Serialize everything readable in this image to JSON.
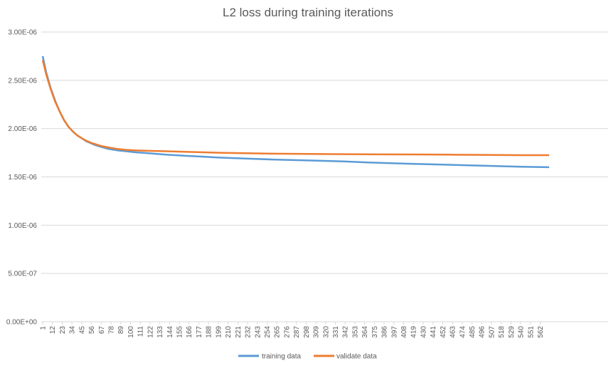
{
  "chart_data": {
    "type": "line",
    "title": "L2 loss during training iterations",
    "xlabel": "",
    "ylabel": "",
    "ylim": [
      0,
      3e-06
    ],
    "y_ticks": [
      "0.00E+00",
      "5.00E-07",
      "1.00E-06",
      "1.50E-06",
      "2.00E-06",
      "2.50E-06",
      "3.00E-06"
    ],
    "x_ticks": [
      1,
      12,
      23,
      34,
      45,
      56,
      67,
      78,
      89,
      100,
      111,
      122,
      133,
      144,
      155,
      166,
      177,
      188,
      199,
      210,
      221,
      232,
      243,
      254,
      265,
      276,
      287,
      298,
      309,
      320,
      331,
      342,
      353,
      364,
      375,
      386,
      397,
      408,
      419,
      430,
      441,
      452,
      463,
      474,
      485,
      496,
      507,
      518,
      529,
      540,
      551,
      562
    ],
    "x_range": [
      1,
      572
    ],
    "grid": "horizontal",
    "legend": "bottom",
    "colors": {
      "training": "#5b9bd5",
      "validate": "#ed7d31",
      "grid": "#d9d9d9",
      "text": "#595959"
    },
    "series": [
      {
        "name": "training data",
        "x": [
          1,
          5,
          10,
          15,
          20,
          25,
          30,
          35,
          40,
          45,
          50,
          55,
          60,
          67,
          75,
          85,
          95,
          105,
          120,
          140,
          160,
          180,
          200,
          230,
          260,
          300,
          340,
          380,
          420,
          460,
          500,
          540,
          572
        ],
        "values": [
          2.75e-06,
          2.58e-06,
          2.42e-06,
          2.29e-06,
          2.18e-06,
          2.09e-06,
          2.02e-06,
          1.97e-06,
          1.93e-06,
          1.9e-06,
          1.87e-06,
          1.85e-06,
          1.83e-06,
          1.81e-06,
          1.79e-06,
          1.775e-06,
          1.765e-06,
          1.755e-06,
          1.745e-06,
          1.73e-06,
          1.72e-06,
          1.71e-06,
          1.7e-06,
          1.69e-06,
          1.68e-06,
          1.67e-06,
          1.66e-06,
          1.645e-06,
          1.635e-06,
          1.625e-06,
          1.615e-06,
          1.605e-06,
          1.6e-06
        ]
      },
      {
        "name": "validate data",
        "x": [
          1,
          5,
          10,
          15,
          20,
          25,
          30,
          35,
          40,
          45,
          50,
          55,
          60,
          67,
          75,
          85,
          95,
          105,
          120,
          140,
          160,
          180,
          200,
          230,
          260,
          300,
          340,
          380,
          420,
          460,
          500,
          540,
          572
        ],
        "values": [
          2.71e-06,
          2.56e-06,
          2.41e-06,
          2.28e-06,
          2.18e-06,
          2.09e-06,
          2.02e-06,
          1.97e-06,
          1.93e-06,
          1.9e-06,
          1.875e-06,
          1.855e-06,
          1.84e-06,
          1.82e-06,
          1.805e-06,
          1.79e-06,
          1.78e-06,
          1.775e-06,
          1.77e-06,
          1.765e-06,
          1.76e-06,
          1.755e-06,
          1.75e-06,
          1.745e-06,
          1.74e-06,
          1.737e-06,
          1.735e-06,
          1.733e-06,
          1.732e-06,
          1.73e-06,
          1.728e-06,
          1.725e-06,
          1.725e-06
        ]
      }
    ]
  }
}
